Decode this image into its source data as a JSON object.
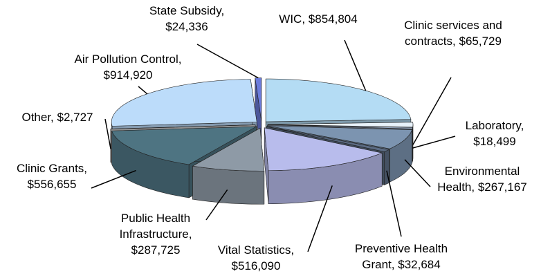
{
  "chart_data": {
    "type": "pie3d",
    "categories": [
      "WIC,",
      "Clinic services and contracts,",
      "Laboratory,",
      "Environmental Health,",
      "Preventive Health Grant,",
      "Vital Statistics,",
      "Public Health Infrastructure,",
      "Clinic Grants,",
      "Other,",
      "Air Pollution Control,",
      "State Subsidy,"
    ],
    "values": [
      854804,
      65729,
      18499,
      267167,
      32684,
      516090,
      287725,
      556655,
      2727,
      914920,
      24336
    ],
    "value_labels": [
      "$854,804",
      "$65,729",
      "$18,499",
      "$267,167",
      "$32,684",
      "$516,090",
      "$287,725",
      "$556,655",
      "$2,727",
      "$914,920",
      "$24,336"
    ],
    "colors": [
      "#b4dcf4",
      "#e8f2fa",
      "#9fb0c8",
      "#7c94b0",
      "#5c6c84",
      "#b8bcec",
      "#8e9aa6",
      "#4e7482",
      "#d8d8d8",
      "#bcdcfa",
      "#6c7cdc"
    ]
  }
}
